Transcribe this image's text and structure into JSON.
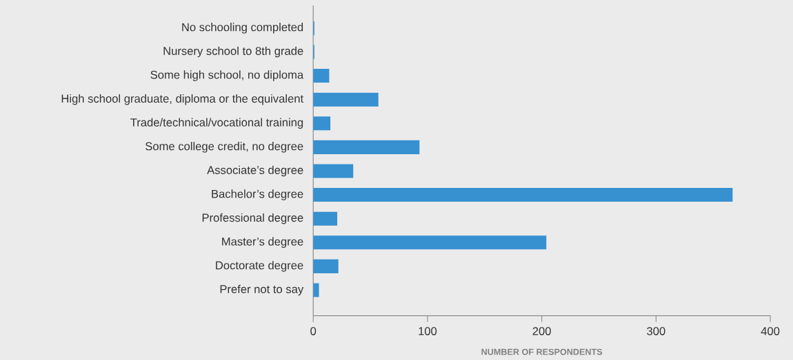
{
  "chart_data": {
    "type": "bar",
    "orientation": "horizontal",
    "xlabel": "NUMBER OF RESPONDENTS",
    "categories": [
      "No schooling completed",
      "Nursery school to 8th grade",
      "Some high school, no diploma",
      "High school graduate, diploma or the equivalent",
      "Trade/technical/vocational training",
      "Some college credit, no degree",
      "Associate’s degree",
      "Bachelor’s degree",
      "Professional degree",
      "Master’s degree",
      "Doctorate degree",
      "Prefer not to say"
    ],
    "values": [
      1,
      1,
      14,
      57,
      15,
      93,
      35,
      367,
      21,
      204,
      22,
      5
    ],
    "color": "#3790d0",
    "xlim": [
      0,
      400
    ],
    "xticks": [
      0,
      100,
      200,
      300,
      400
    ],
    "grid": false
  }
}
